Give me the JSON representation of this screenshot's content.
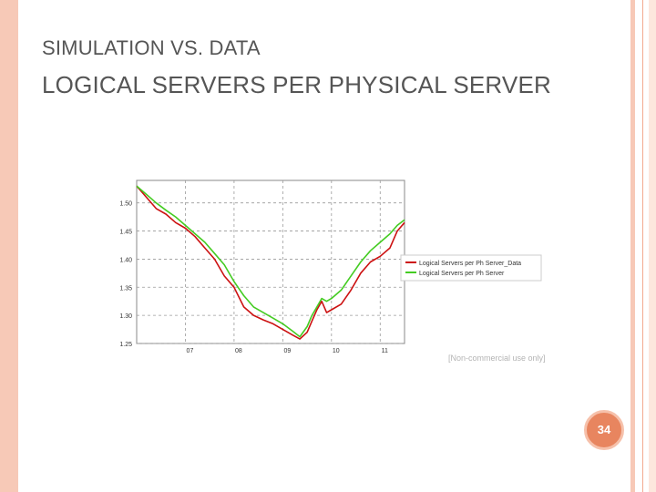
{
  "slide": {
    "title_line_1": "SIMULATION VS. DATA",
    "title_line_2": "LOGICAL SERVERS PER PHYSICAL SERVER",
    "watermark": "[Non-commercial use only]",
    "page_number": "34",
    "colors": {
      "accent": "#e8855f",
      "stripe": "#f7c9b7"
    }
  },
  "chart_data": {
    "type": "line",
    "title": "",
    "xlabel": "",
    "ylabel": "",
    "x_ticks": [
      "07",
      "08",
      "09",
      "10",
      "11"
    ],
    "y_ticks": [
      "1.25",
      "1.30",
      "1.35",
      "1.40",
      "1.45",
      "1.50"
    ],
    "xlim": [
      6.0,
      11.5
    ],
    "ylim": [
      1.25,
      1.54
    ],
    "grid": true,
    "legend_position": "right",
    "series": [
      {
        "name": "Logical Servers per Ph Server_Data",
        "color": "#cc1111",
        "points": [
          [
            6.0,
            1.53
          ],
          [
            6.2,
            1.51
          ],
          [
            6.4,
            1.49
          ],
          [
            6.6,
            1.48
          ],
          [
            6.8,
            1.465
          ],
          [
            7.0,
            1.455
          ],
          [
            7.2,
            1.44
          ],
          [
            7.4,
            1.42
          ],
          [
            7.6,
            1.4
          ],
          [
            7.8,
            1.37
          ],
          [
            8.0,
            1.35
          ],
          [
            8.2,
            1.315
          ],
          [
            8.4,
            1.3
          ],
          [
            8.6,
            1.292
          ],
          [
            8.8,
            1.285
          ],
          [
            9.0,
            1.275
          ],
          [
            9.2,
            1.265
          ],
          [
            9.35,
            1.258
          ],
          [
            9.5,
            1.27
          ],
          [
            9.6,
            1.29
          ],
          [
            9.7,
            1.31
          ],
          [
            9.8,
            1.325
          ],
          [
            9.9,
            1.305
          ],
          [
            10.0,
            1.31
          ],
          [
            10.2,
            1.32
          ],
          [
            10.4,
            1.345
          ],
          [
            10.6,
            1.375
          ],
          [
            10.8,
            1.395
          ],
          [
            11.0,
            1.405
          ],
          [
            11.2,
            1.42
          ],
          [
            11.35,
            1.45
          ],
          [
            11.5,
            1.465
          ]
        ]
      },
      {
        "name": "Logical Servers per Ph Server",
        "color": "#44cc22",
        "points": [
          [
            6.0,
            1.53
          ],
          [
            6.2,
            1.515
          ],
          [
            6.4,
            1.5
          ],
          [
            6.6,
            1.487
          ],
          [
            6.8,
            1.475
          ],
          [
            7.0,
            1.46
          ],
          [
            7.2,
            1.445
          ],
          [
            7.4,
            1.43
          ],
          [
            7.6,
            1.41
          ],
          [
            7.8,
            1.39
          ],
          [
            8.0,
            1.36
          ],
          [
            8.2,
            1.335
          ],
          [
            8.4,
            1.315
          ],
          [
            8.6,
            1.305
          ],
          [
            8.8,
            1.295
          ],
          [
            9.0,
            1.285
          ],
          [
            9.2,
            1.272
          ],
          [
            9.35,
            1.262
          ],
          [
            9.5,
            1.28
          ],
          [
            9.6,
            1.3
          ],
          [
            9.7,
            1.315
          ],
          [
            9.8,
            1.33
          ],
          [
            9.9,
            1.325
          ],
          [
            10.0,
            1.33
          ],
          [
            10.2,
            1.345
          ],
          [
            10.4,
            1.37
          ],
          [
            10.6,
            1.395
          ],
          [
            10.8,
            1.415
          ],
          [
            11.0,
            1.43
          ],
          [
            11.2,
            1.445
          ],
          [
            11.35,
            1.46
          ],
          [
            11.5,
            1.47
          ]
        ]
      }
    ]
  }
}
